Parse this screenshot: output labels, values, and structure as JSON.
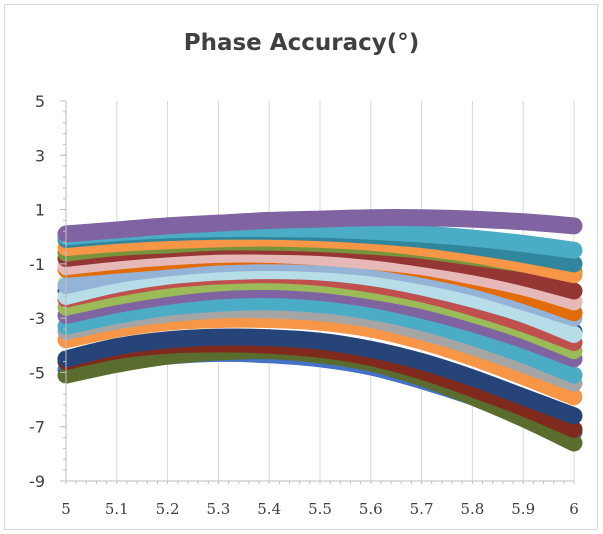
{
  "chart_data": {
    "type": "line",
    "title": "Phase Accuracy(°)",
    "xlabel": "",
    "ylabel": "",
    "xlim": [
      5,
      6
    ],
    "ylim": [
      -9,
      5
    ],
    "x_ticks": [
      "5",
      "5.1",
      "5.2",
      "5.3",
      "5.4",
      "5.5",
      "5.6",
      "5.7",
      "5.8",
      "5.9",
      "6"
    ],
    "y_ticks": [
      "5",
      "3",
      "1",
      "-1",
      "-3",
      "-5",
      "-7",
      "-9"
    ],
    "grid": "vertical",
    "legend": "none",
    "x": [
      5.0,
      5.1,
      5.2,
      5.3,
      5.4,
      5.5,
      5.6,
      5.7,
      5.8,
      5.9,
      6.0
    ],
    "series": [
      {
        "color": "#4472c4",
        "values": [
          -4.9,
          -4.6,
          -4.4,
          -4.3,
          -4.35,
          -4.5,
          -4.8,
          -5.3,
          -5.9,
          -6.6,
          -7.2
        ]
      },
      {
        "color": "#5b6d2e",
        "values": [
          -5.1,
          -4.7,
          -4.4,
          -4.25,
          -4.2,
          -4.35,
          -4.65,
          -5.2,
          -5.9,
          -6.7,
          -7.6
        ]
      },
      {
        "color": "#7f2a1d",
        "values": [
          -4.6,
          -4.2,
          -4.0,
          -3.95,
          -4.0,
          -4.15,
          -4.45,
          -4.95,
          -5.6,
          -6.3,
          -7.1
        ]
      },
      {
        "color": "#264478",
        "values": [
          -4.5,
          -4.05,
          -3.8,
          -3.7,
          -3.72,
          -3.85,
          -4.15,
          -4.6,
          -5.2,
          -5.9,
          -6.6
        ]
      },
      {
        "color": "#f79646",
        "values": [
          -3.8,
          -3.4,
          -3.15,
          -3.05,
          -3.05,
          -3.15,
          -3.4,
          -3.85,
          -4.45,
          -5.15,
          -5.9
        ]
      },
      {
        "color": "#a5a5a5",
        "values": [
          -3.5,
          -3.1,
          -2.85,
          -2.7,
          -2.7,
          -2.8,
          -3.05,
          -3.5,
          -4.05,
          -4.7,
          -5.4
        ]
      },
      {
        "color": "#4bacc6",
        "values": [
          -3.3,
          -2.9,
          -2.6,
          -2.45,
          -2.4,
          -2.5,
          -2.75,
          -3.15,
          -3.7,
          -4.35,
          -5.1
        ]
      },
      {
        "color": "#8064a2",
        "values": [
          -2.9,
          -2.5,
          -2.2,
          -2.0,
          -1.95,
          -2.05,
          -2.3,
          -2.7,
          -3.2,
          -3.8,
          -4.5
        ]
      },
      {
        "color": "#9bbb59",
        "values": [
          -2.6,
          -2.2,
          -1.9,
          -1.7,
          -1.65,
          -1.75,
          -2.0,
          -2.35,
          -2.85,
          -3.45,
          -4.2
        ]
      },
      {
        "color": "#c0504d",
        "values": [
          -2.3,
          -1.9,
          -1.6,
          -1.45,
          -1.4,
          -1.5,
          -1.75,
          -2.1,
          -2.6,
          -3.2,
          -3.9
        ]
      },
      {
        "color": "#2c4d75",
        "values": [
          -2.0,
          -1.65,
          -1.4,
          -1.25,
          -1.2,
          -1.3,
          -1.5,
          -1.85,
          -2.3,
          -2.85,
          -3.5
        ]
      },
      {
        "color": "#b7dee8",
        "values": [
          -2.2,
          -1.75,
          -1.45,
          -1.3,
          -1.25,
          -1.3,
          -1.5,
          -1.85,
          -2.3,
          -2.85,
          -3.6
        ]
      },
      {
        "color": "#d4e6a5",
        "values": [
          -1.7,
          -1.35,
          -1.1,
          -0.95,
          -0.9,
          -0.95,
          -1.1,
          -1.4,
          -1.8,
          -2.3,
          -2.9
        ]
      },
      {
        "color": "#95b3d7",
        "values": [
          -1.8,
          -1.4,
          -1.15,
          -1.0,
          -0.95,
          -1.0,
          -1.15,
          -1.45,
          -1.85,
          -2.4,
          -3.0
        ]
      },
      {
        "color": "#e26b0a",
        "values": [
          -1.2,
          -1.05,
          -0.9,
          -0.75,
          -0.7,
          -0.75,
          -0.9,
          -1.2,
          -1.6,
          -2.15,
          -2.8
        ]
      },
      {
        "color": "#e6b9b8",
        "values": [
          -1.1,
          -0.9,
          -0.75,
          -0.65,
          -0.65,
          -0.75,
          -0.9,
          -1.1,
          -1.45,
          -1.85,
          -2.4
        ]
      },
      {
        "color": "#963634",
        "values": [
          -0.8,
          -0.6,
          -0.45,
          -0.35,
          -0.35,
          -0.4,
          -0.55,
          -0.8,
          -1.1,
          -1.5,
          -2.0
        ]
      },
      {
        "color": "#77933c",
        "values": [
          -0.6,
          -0.4,
          -0.3,
          -0.2,
          -0.2,
          -0.25,
          -0.35,
          -0.5,
          -0.75,
          -1.0,
          -1.3
        ]
      },
      {
        "color": "#f79646",
        "values": [
          -0.4,
          -0.25,
          -0.15,
          -0.08,
          -0.05,
          -0.1,
          -0.2,
          -0.4,
          -0.65,
          -1.0,
          -1.4
        ]
      },
      {
        "color": "#31859c",
        "values": [
          -0.1,
          0.05,
          0.15,
          0.2,
          0.2,
          0.15,
          0.05,
          -0.1,
          -0.35,
          -0.65,
          -1.0
        ]
      },
      {
        "color": "#4bacc6",
        "values": [
          0.0,
          0.15,
          0.25,
          0.3,
          0.3,
          0.28,
          0.2,
          0.1,
          -0.05,
          -0.25,
          -0.5
        ]
      },
      {
        "color": "#8064a2",
        "values": [
          0.1,
          0.25,
          0.4,
          0.5,
          0.6,
          0.65,
          0.7,
          0.7,
          0.65,
          0.55,
          0.4
        ]
      }
    ]
  }
}
